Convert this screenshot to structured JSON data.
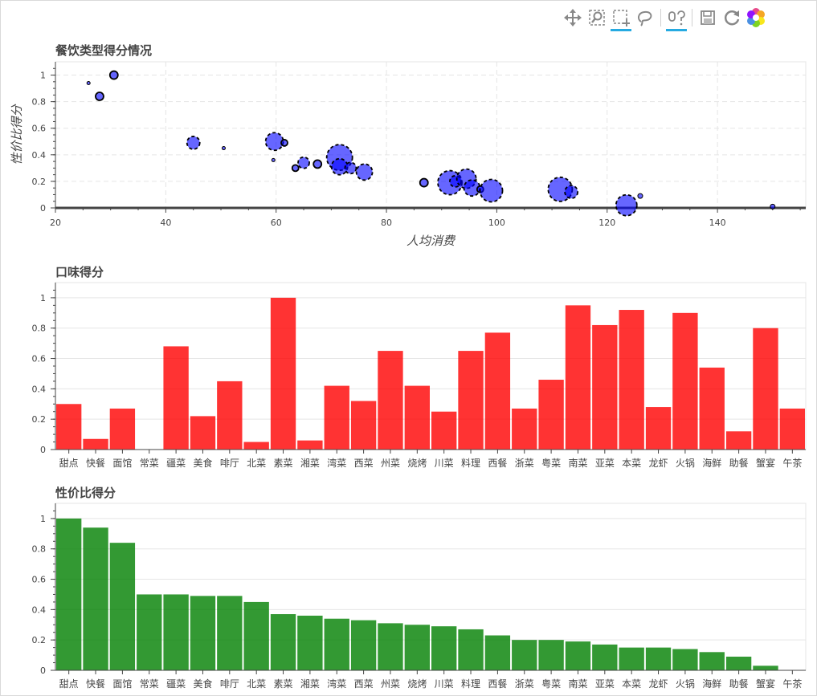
{
  "toolbar": {
    "tools": [
      {
        "name": "pan-tool-icon",
        "active": false
      },
      {
        "name": "box-zoom-tool-icon",
        "active": false
      },
      {
        "name": "box-select-tool-icon",
        "active": true
      },
      {
        "name": "lasso-select-tool-icon",
        "active": false
      },
      {
        "name": "hover-tool-icon",
        "active": true
      },
      {
        "name": "save-tool-icon",
        "active": false
      },
      {
        "name": "reset-tool-icon",
        "active": false
      },
      {
        "name": "bokeh-logo-icon",
        "active": false
      }
    ]
  },
  "colors": {
    "scatter": "#0000ff",
    "taste": "#ff0000",
    "value": "#008000",
    "grid": "#e5e5e5"
  },
  "chart_data": [
    {
      "type": "scatter",
      "title": "餐饮类型得分情况",
      "xlabel": "人均消费",
      "ylabel": "性价比得分",
      "xlim": [
        20,
        156
      ],
      "ylim": [
        0,
        1.1
      ],
      "x_ticks": [
        20,
        40,
        60,
        80,
        100,
        120,
        140
      ],
      "y_ticks": [
        0,
        0.2,
        0.4,
        0.6,
        0.8,
        1
      ],
      "grid": "dashed",
      "points": [
        {
          "x": 26,
          "y": 0.94,
          "s": 2
        },
        {
          "x": 30.6,
          "y": 1.0,
          "s": 5
        },
        {
          "x": 28,
          "y": 0.84,
          "s": 5
        },
        {
          "x": 45,
          "y": 0.49,
          "s": 8
        },
        {
          "x": 50.5,
          "y": 0.45,
          "s": 2
        },
        {
          "x": 59.7,
          "y": 0.5,
          "s": 11
        },
        {
          "x": 61.5,
          "y": 0.49,
          "s": 4
        },
        {
          "x": 59.5,
          "y": 0.36,
          "s": 2
        },
        {
          "x": 63.5,
          "y": 0.3,
          "s": 4
        },
        {
          "x": 65,
          "y": 0.34,
          "s": 7
        },
        {
          "x": 67.5,
          "y": 0.33,
          "s": 5
        },
        {
          "x": 71.5,
          "y": 0.38,
          "s": 16
        },
        {
          "x": 71.5,
          "y": 0.31,
          "s": 10
        },
        {
          "x": 73.5,
          "y": 0.3,
          "s": 7
        },
        {
          "x": 76,
          "y": 0.27,
          "s": 10
        },
        {
          "x": 86.8,
          "y": 0.19,
          "s": 5
        },
        {
          "x": 91.5,
          "y": 0.19,
          "s": 15
        },
        {
          "x": 92.5,
          "y": 0.2,
          "s": 7
        },
        {
          "x": 94.5,
          "y": 0.22,
          "s": 12
        },
        {
          "x": 95.5,
          "y": 0.15,
          "s": 10
        },
        {
          "x": 97,
          "y": 0.14,
          "s": 4
        },
        {
          "x": 99,
          "y": 0.13,
          "s": 14
        },
        {
          "x": 111.5,
          "y": 0.14,
          "s": 15
        },
        {
          "x": 113.5,
          "y": 0.12,
          "s": 8
        },
        {
          "x": 123.5,
          "y": 0.02,
          "s": 13
        },
        {
          "x": 126,
          "y": 0.09,
          "s": 3
        },
        {
          "x": 150,
          "y": 0.01,
          "s": 3
        }
      ]
    },
    {
      "type": "bar",
      "title": "口味得分",
      "categories": [
        "甜点",
        "快餐",
        "面馆",
        "常菜",
        "疆菜",
        "美食",
        "啡厅",
        "北菜",
        "素菜",
        "湘菜",
        "湾菜",
        "西菜",
        "州菜",
        "烧烤",
        "川菜",
        "料理",
        "西餐",
        "浙菜",
        "粤菜",
        "南菜",
        "亚菜",
        "本菜",
        "龙虾",
        "火锅",
        "海鲜",
        "助餐",
        "蟹宴",
        "午茶"
      ],
      "values": [
        0.3,
        0.07,
        0.27,
        0,
        0.68,
        0.22,
        0.45,
        0.05,
        1.0,
        0.06,
        0.42,
        0.32,
        0.65,
        0.42,
        0.25,
        0.65,
        0.77,
        0.27,
        0.46,
        0.95,
        0.82,
        0.92,
        0.28,
        0.9,
        0.54,
        0.12,
        0.8,
        0.27
      ],
      "ylim": [
        0,
        1.1
      ],
      "y_ticks": [
        0,
        0.2,
        0.4,
        0.6,
        0.8,
        1
      ]
    },
    {
      "type": "bar",
      "title": "性价比得分",
      "categories": [
        "甜点",
        "快餐",
        "面馆",
        "常菜",
        "疆菜",
        "美食",
        "啡厅",
        "北菜",
        "素菜",
        "湘菜",
        "湾菜",
        "西菜",
        "州菜",
        "烧烤",
        "川菜",
        "料理",
        "西餐",
        "浙菜",
        "粤菜",
        "南菜",
        "亚菜",
        "本菜",
        "龙虾",
        "火锅",
        "海鲜",
        "助餐",
        "蟹宴",
        "午茶"
      ],
      "values": [
        1.0,
        0.94,
        0.84,
        0.5,
        0.5,
        0.49,
        0.49,
        0.45,
        0.37,
        0.36,
        0.34,
        0.33,
        0.31,
        0.3,
        0.29,
        0.27,
        0.23,
        0.2,
        0.2,
        0.19,
        0.17,
        0.15,
        0.15,
        0.14,
        0.12,
        0.09,
        0.03,
        0.0
      ],
      "ylim": [
        0,
        1.1
      ],
      "y_ticks": [
        0,
        0.2,
        0.4,
        0.6,
        0.8,
        1
      ]
    }
  ]
}
